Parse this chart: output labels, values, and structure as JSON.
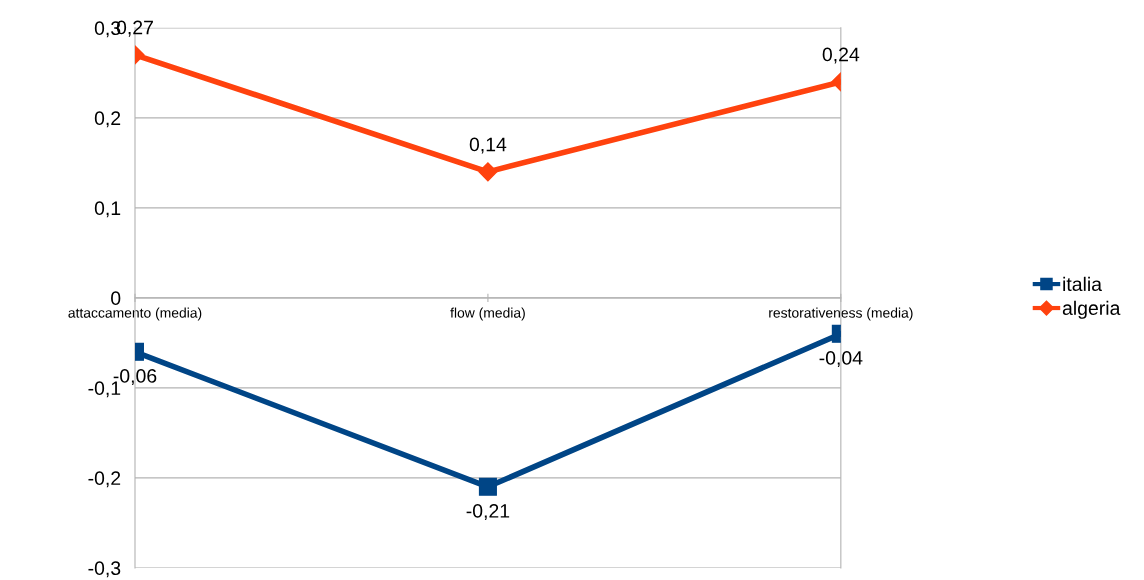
{
  "chart_data": {
    "type": "line",
    "categories": [
      "attaccamento (media)",
      "flow (media)",
      "restorativeness (media)"
    ],
    "series": [
      {
        "name": "italia",
        "color": "#004586",
        "marker": "square",
        "values": [
          -0.06,
          -0.21,
          -0.04
        ],
        "value_labels": [
          "-0,06",
          "-0,21",
          "-0,04"
        ]
      },
      {
        "name": "algeria",
        "color": "#ff420e",
        "marker": "diamond",
        "values": [
          0.27,
          0.14,
          0.24
        ],
        "value_labels": [
          "0,27",
          "0,14",
          "0,24"
        ]
      }
    ],
    "ylim": [
      -0.3,
      0.3
    ],
    "yticks": [
      {
        "value": -0.3,
        "label": "-0,3"
      },
      {
        "value": -0.2,
        "label": "-0,2"
      },
      {
        "value": -0.1,
        "label": "-0,1"
      },
      {
        "value": 0,
        "label": "0"
      },
      {
        "value": 0.1,
        "label": "0,1"
      },
      {
        "value": 0.2,
        "label": "0,2"
      },
      {
        "value": 0.3,
        "label": "0,3"
      }
    ],
    "grid": "y",
    "legend": "right",
    "line_style": "solid"
  }
}
